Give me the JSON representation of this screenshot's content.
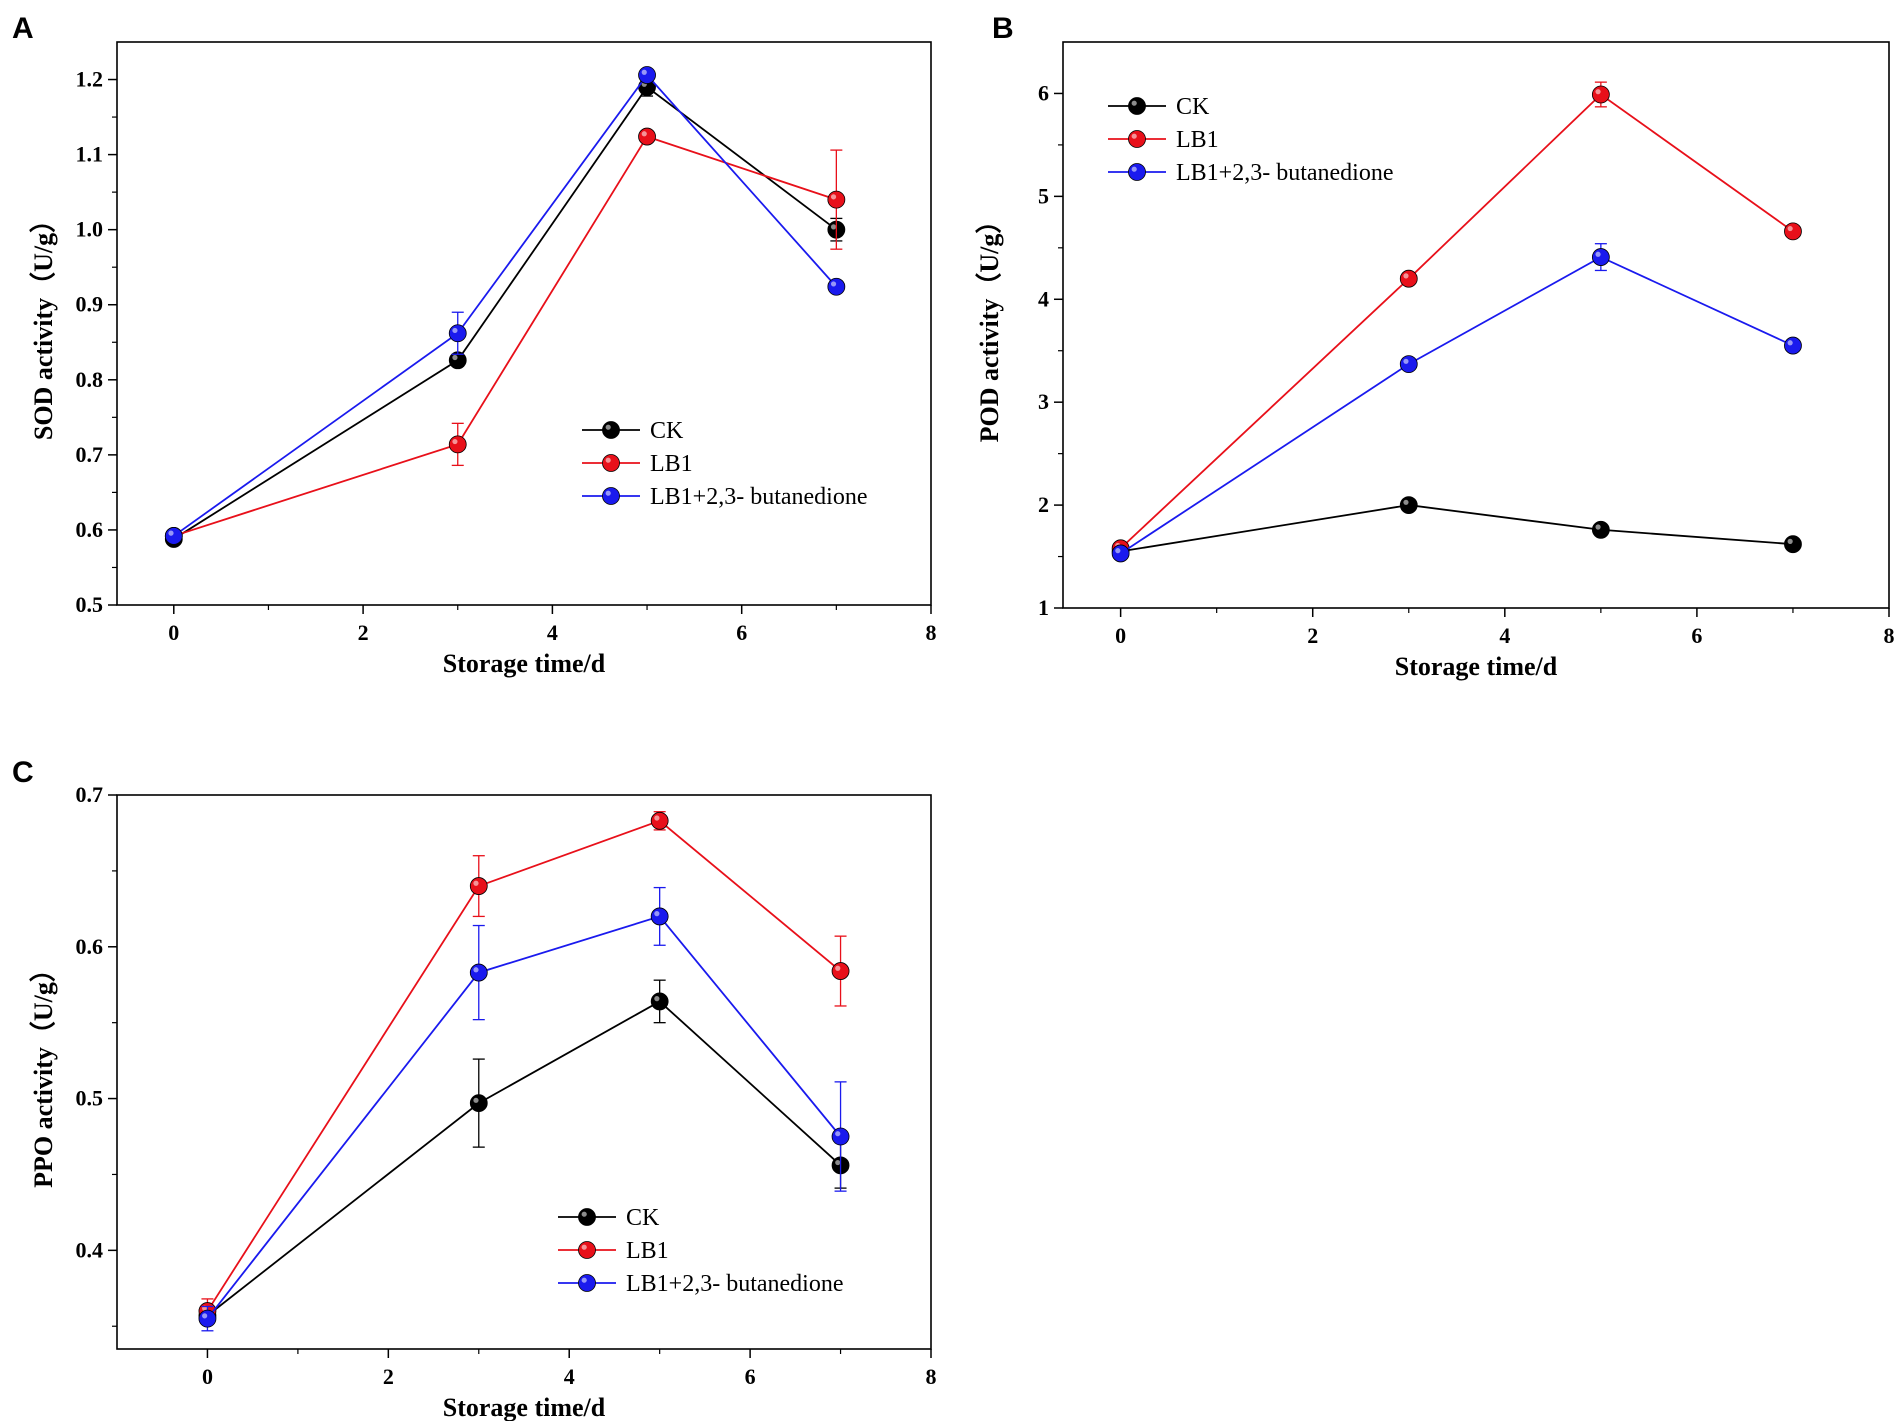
{
  "colors": {
    "CK": "#000000",
    "LB1": "#e8101a",
    "LB1+2,3- butanedione": "#1a1aee"
  },
  "chart_data": [
    {
      "panel": "A",
      "type": "line",
      "xlabel": "Storage time/d",
      "ylabel": "SOD activity（U/g）",
      "xlim": [
        -0.6,
        8
      ],
      "ylim": [
        0.5,
        1.25
      ],
      "xticks": [
        0,
        2,
        4,
        6,
        8
      ],
      "xtick_labels": [
        "0",
        "2",
        "4",
        "6",
        "8"
      ],
      "yticks": [
        0.5,
        0.6,
        0.7,
        0.8,
        0.9,
        1.0,
        1.1,
        1.2
      ],
      "ytick_labels": [
        "0.5",
        "0.6",
        "0.7",
        "0.8",
        "0.9",
        "1.0",
        "1.1",
        "1.2"
      ],
      "legend_position": "lower-right",
      "x": [
        0,
        3,
        5,
        7
      ],
      "series": [
        {
          "name": "CK",
          "values": [
            0.588,
            0.826,
            1.19,
            1.0
          ],
          "errors": [
            0.005,
            0.008,
            0.012,
            0.015
          ]
        },
        {
          "name": "LB1",
          "values": [
            0.592,
            0.714,
            1.124,
            1.04
          ],
          "errors": [
            0.005,
            0.028,
            0.006,
            0.066
          ]
        },
        {
          "name": "LB1+2,3- butanedione",
          "values": [
            0.592,
            0.862,
            1.206,
            0.924
          ],
          "errors": [
            0.005,
            0.028,
            0.006,
            0.006
          ]
        }
      ]
    },
    {
      "panel": "B",
      "type": "line",
      "xlabel": "Storage time/d",
      "ylabel": "POD activity（U/g）",
      "xlim": [
        -0.6,
        8
      ],
      "ylim": [
        1,
        6.5
      ],
      "xticks": [
        0,
        2,
        4,
        6,
        8
      ],
      "xtick_labels": [
        "0",
        "2",
        "4",
        "6",
        "8"
      ],
      "yticks": [
        1,
        2,
        3,
        4,
        5,
        6
      ],
      "ytick_labels": [
        "1",
        "2",
        "3",
        "4",
        "5",
        "6"
      ],
      "legend_position": "top-left",
      "x": [
        0,
        3,
        5,
        7
      ],
      "series": [
        {
          "name": "CK",
          "values": [
            1.55,
            2.0,
            1.76,
            1.62
          ],
          "errors": [
            0.03,
            0.04,
            0.04,
            0.03
          ]
        },
        {
          "name": "LB1",
          "values": [
            1.58,
            4.2,
            5.99,
            4.66
          ],
          "errors": [
            0.03,
            0.05,
            0.12,
            0.04
          ]
        },
        {
          "name": "LB1+2,3- butanedione",
          "values": [
            1.53,
            3.37,
            4.41,
            3.55
          ],
          "errors": [
            0.03,
            0.05,
            0.13,
            0.04
          ]
        }
      ]
    },
    {
      "panel": "C",
      "type": "line",
      "xlabel": "Storage time/d",
      "ylabel": "PPO activity（U/g）",
      "xlim": [
        -1,
        8
      ],
      "ylim": [
        0.335,
        0.7
      ],
      "xticks": [
        0,
        2,
        4,
        6,
        8
      ],
      "xtick_labels": [
        "0",
        "2",
        "4",
        "6",
        "8"
      ],
      "yticks": [
        0.4,
        0.5,
        0.6,
        0.7
      ],
      "ytick_labels": [
        "0.4",
        "0.5",
        "0.6",
        "0.7"
      ],
      "legend_position": "lower-right",
      "x": [
        0,
        3,
        5,
        7
      ],
      "series": [
        {
          "name": "CK",
          "values": [
            0.357,
            0.497,
            0.564,
            0.456
          ],
          "errors": [
            0.005,
            0.029,
            0.014,
            0.015
          ]
        },
        {
          "name": "LB1",
          "values": [
            0.36,
            0.64,
            0.683,
            0.584
          ],
          "errors": [
            0.008,
            0.02,
            0.006,
            0.023
          ]
        },
        {
          "name": "LB1+2,3- butanedione",
          "values": [
            0.355,
            0.583,
            0.62,
            0.475
          ],
          "errors": [
            0.008,
            0.031,
            0.019,
            0.036
          ]
        }
      ]
    }
  ]
}
